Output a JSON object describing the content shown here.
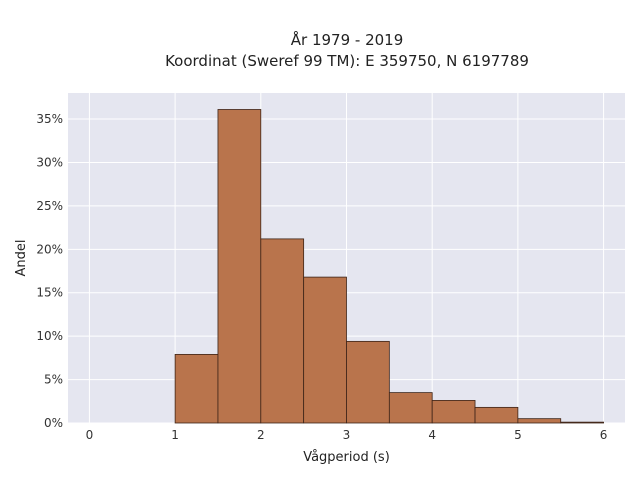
{
  "chart_data": {
    "type": "bar",
    "title_lines": [
      "År 1979 - 2019",
      "Koordinat (Sweref 99 TM): E 359750, N 6197789"
    ],
    "xlabel": "Vågperiod (s)",
    "ylabel": "Andel",
    "xlim": [
      -0.25,
      6.25
    ],
    "ylim": [
      0,
      0.38
    ],
    "x_ticks": [
      0,
      1,
      2,
      3,
      4,
      5,
      6
    ],
    "y_ticks": [
      0,
      0.05,
      0.1,
      0.15,
      0.2,
      0.25,
      0.3,
      0.35
    ],
    "y_tick_labels": [
      "0%",
      "5%",
      "10%",
      "15%",
      "20%",
      "25%",
      "30%",
      "35%"
    ],
    "bins": [
      {
        "x0": 1.0,
        "x1": 1.5,
        "value": 0.079
      },
      {
        "x0": 1.5,
        "x1": 2.0,
        "value": 0.361
      },
      {
        "x0": 2.0,
        "x1": 2.5,
        "value": 0.212
      },
      {
        "x0": 2.5,
        "x1": 3.0,
        "value": 0.168
      },
      {
        "x0": 3.0,
        "x1": 3.5,
        "value": 0.094
      },
      {
        "x0": 3.5,
        "x1": 4.0,
        "value": 0.035
      },
      {
        "x0": 4.0,
        "x1": 4.5,
        "value": 0.026
      },
      {
        "x0": 4.5,
        "x1": 5.0,
        "value": 0.018
      },
      {
        "x0": 5.0,
        "x1": 5.5,
        "value": 0.005
      },
      {
        "x0": 5.5,
        "x1": 6.0,
        "value": 0.001
      }
    ],
    "grid": true,
    "colors": {
      "bar_fill": "#b9744c",
      "bar_stroke": "#3d2418",
      "plot_background": "#e5e6f0",
      "grid": "#ffffff"
    }
  }
}
